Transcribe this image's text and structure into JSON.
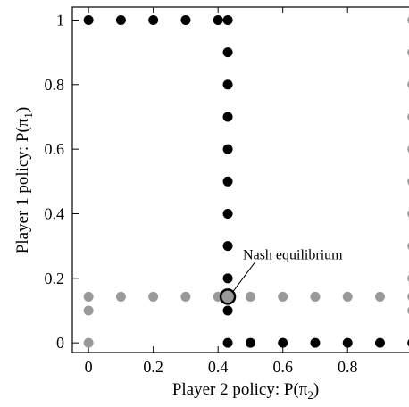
{
  "chart_data": {
    "type": "scatter",
    "xlabel": "Player 2 policy: P(π",
    "xlabel_sub": "2",
    "xlabel_end": ")",
    "ylabel": "Player 1 policy: P(π",
    "ylabel_sub": "1",
    "ylabel_end": ")",
    "xlim": [
      -0.05,
      1.02
    ],
    "ylim": [
      -0.03,
      1.04
    ],
    "xticks": [
      0,
      0.2,
      0.4,
      0.6,
      0.8,
      1
    ],
    "xtick_labels": [
      "0",
      "0.2",
      "0.4",
      "0.6",
      "0.8",
      "1"
    ],
    "yticks": [
      0,
      0.2,
      0.4,
      0.6,
      0.8,
      1
    ],
    "ytick_labels": [
      "0",
      "0.2",
      "0.4",
      "0.6",
      "0.8",
      "1"
    ],
    "grid": false,
    "series": [
      {
        "color": "#999999",
        "points": [
          [
            0,
            0
          ],
          [
            0,
            0.1
          ],
          [
            0,
            0.143
          ],
          [
            0.1,
            0.143
          ],
          [
            0.2,
            0.143
          ],
          [
            0.3,
            0.143
          ],
          [
            0.4,
            0.143
          ],
          [
            0.5,
            0.143
          ],
          [
            0.6,
            0.143
          ],
          [
            0.7,
            0.143
          ],
          [
            0.8,
            0.143
          ],
          [
            0.9,
            0.143
          ],
          [
            1,
            0.143
          ],
          [
            1,
            0
          ],
          [
            1,
            0.1
          ],
          [
            1,
            0.2
          ],
          [
            1,
            0.3
          ],
          [
            1,
            0.4
          ],
          [
            1,
            0.5
          ],
          [
            1,
            0.6
          ],
          [
            1,
            0.7
          ],
          [
            1,
            0.8
          ],
          [
            1,
            0.9
          ],
          [
            1,
            1
          ]
        ]
      },
      {
        "color": "#000000",
        "points": [
          [
            0,
            1
          ],
          [
            0.1,
            1
          ],
          [
            0.2,
            1
          ],
          [
            0.3,
            1
          ],
          [
            0.4,
            1
          ],
          [
            0.43,
            1
          ],
          [
            0.43,
            0.9
          ],
          [
            0.43,
            0.8
          ],
          [
            0.43,
            0.7
          ],
          [
            0.43,
            0.6
          ],
          [
            0.43,
            0.5
          ],
          [
            0.43,
            0.4
          ],
          [
            0.43,
            0.3
          ],
          [
            0.43,
            0.2
          ],
          [
            0.43,
            0.1
          ],
          [
            0.43,
            0
          ],
          [
            0.5,
            0
          ],
          [
            0.6,
            0
          ],
          [
            0.7,
            0
          ],
          [
            0.8,
            0
          ],
          [
            0.9,
            0
          ],
          [
            1,
            0
          ]
        ]
      }
    ],
    "nash_point": [
      0.43,
      0.143
    ],
    "annotation": "Nash equilibrium"
  }
}
